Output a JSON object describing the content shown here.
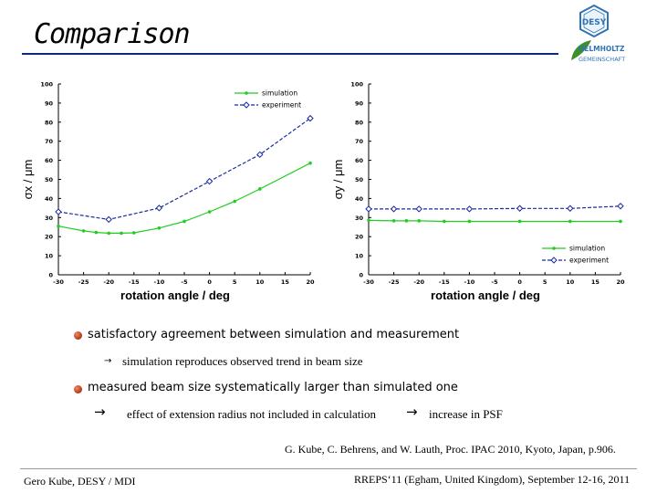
{
  "slide": {
    "title": "Comparison",
    "logo": {
      "name": "DESY",
      "line1": "HELMHOLTZ",
      "line2": "GEMEINSCHAFT",
      "colors": {
        "primary": "#2f74b5",
        "leaf": "#3d8f2a"
      }
    }
  },
  "bullets": {
    "b1": "satisfactory agreement between simulation and measurement",
    "b1_sub": "simulation reproduces observed trend in beam size",
    "b2": "measured beam size systematically larger than simulated one",
    "b2_sub1": "effect of extension radius not included in calculation",
    "b2_sub2": "increase in PSF",
    "arrow_small": "→",
    "arrow_big": "→"
  },
  "citation": "G. Kube, C. Behrens, and W. Lauth, Proc. IPAC 2010, Kyoto, Japan, p.906.",
  "footer": {
    "left": "Gero Kube, DESY / MDI",
    "right": "RREPS‘11 (Egham, United Kingdom), September 12-16, 2011"
  },
  "chart_data": [
    {
      "type": "line",
      "xlabel": "rotation angle / deg",
      "ylabel": "σx / μm",
      "xlim": [
        -30,
        20
      ],
      "ylim": [
        0,
        100
      ],
      "xticks": [
        -30,
        -25,
        -20,
        -15,
        -10,
        -5,
        0,
        5,
        10,
        15,
        20
      ],
      "yticks": [
        0,
        10,
        20,
        30,
        40,
        50,
        60,
        70,
        80,
        90,
        100
      ],
      "grid": false,
      "legend_position": "top-right",
      "series": [
        {
          "name": "simulation",
          "color": "#22cc22",
          "marker": "dot",
          "x": [
            -30,
            -25,
            -22.5,
            -20,
            -17.5,
            -15,
            -10,
            -5,
            0,
            5,
            10,
            20
          ],
          "y": [
            25.5,
            23,
            22.2,
            21.8,
            21.8,
            22,
            24.5,
            28,
            33,
            38.5,
            45,
            58.5
          ]
        },
        {
          "name": "experiment",
          "color": "#1a2aa0",
          "marker": "diamond",
          "x": [
            -30,
            -20,
            -10,
            0,
            10,
            20
          ],
          "y": [
            33,
            29,
            35,
            49,
            63,
            82
          ]
        }
      ]
    },
    {
      "type": "line",
      "xlabel": "rotation angle / deg",
      "ylabel": "σy / μm",
      "xlim": [
        -30,
        20
      ],
      "ylim": [
        0,
        100
      ],
      "xticks": [
        -30,
        -25,
        -20,
        -15,
        -10,
        -5,
        0,
        5,
        10,
        15,
        20
      ],
      "yticks": [
        0,
        10,
        20,
        30,
        40,
        50,
        60,
        70,
        80,
        90,
        100
      ],
      "grid": false,
      "legend_position": "bottom-right",
      "series": [
        {
          "name": "simulation",
          "color": "#22cc22",
          "marker": "dot",
          "x": [
            -30,
            -25,
            -22.5,
            -20,
            -15,
            -10,
            0,
            10,
            20
          ],
          "y": [
            28.5,
            28.3,
            28.3,
            28.3,
            28,
            28,
            28,
            28,
            28
          ]
        },
        {
          "name": "experiment",
          "color": "#1a2aa0",
          "marker": "diamond",
          "x": [
            -30,
            -25,
            -20,
            -10,
            0,
            10,
            20
          ],
          "y": [
            34.5,
            34.5,
            34.5,
            34.5,
            34.8,
            34.8,
            36
          ]
        }
      ]
    }
  ]
}
